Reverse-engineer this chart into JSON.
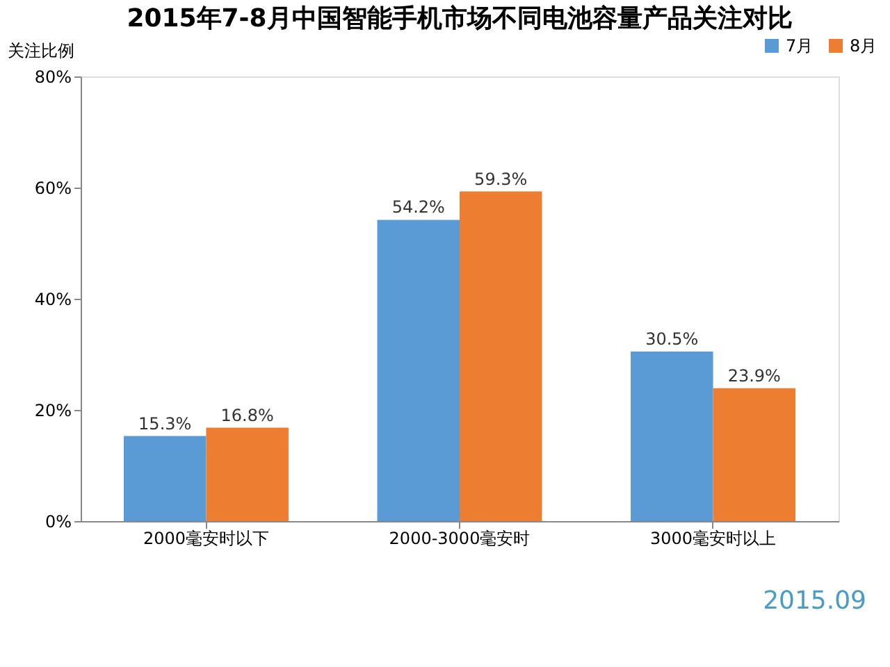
{
  "chart_data": {
    "type": "bar",
    "title": "2015年7-8月中国智能手机市场不同电池容量产品关注对比",
    "ylabel": "关注比例",
    "categories": [
      "2000毫安时以下",
      "2000-3000毫安时",
      "3000毫安时以上"
    ],
    "series": [
      {
        "name": "7月",
        "color": "#5b9bd5",
        "values": [
          15.3,
          54.2,
          30.5
        ],
        "value_labels": [
          "15.3%",
          "54.2%",
          "30.5%"
        ]
      },
      {
        "name": "8月",
        "color": "#ed7d31",
        "values": [
          16.8,
          59.3,
          23.9
        ],
        "value_labels": [
          "16.8%",
          "59.3%",
          "23.9%"
        ]
      }
    ],
    "ylim": [
      0,
      80
    ],
    "yticks": [
      {
        "value": 0,
        "label": "0%"
      },
      {
        "value": 20,
        "label": "20%"
      },
      {
        "value": 40,
        "label": "40%"
      },
      {
        "value": 60,
        "label": "60%"
      },
      {
        "value": 80,
        "label": "80%"
      }
    ],
    "grid": false,
    "legend": "top right",
    "annotations": [
      "2015.09"
    ]
  }
}
